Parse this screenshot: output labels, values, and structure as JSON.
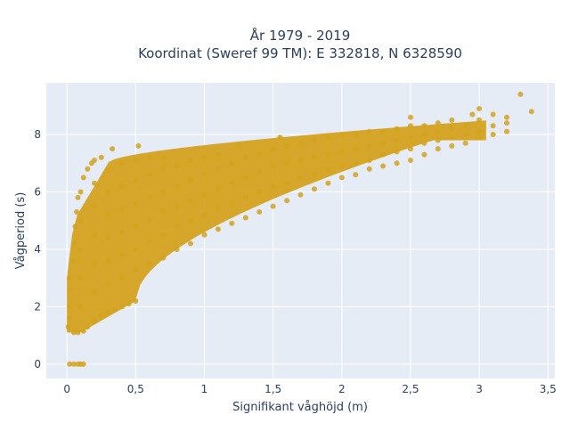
{
  "chart_data": {
    "type": "scatter",
    "title_line1": "År 1979 - 2019",
    "title_line2": "Koordinat (Sweref 99 TM): E 332818, N 6328590",
    "xlabel": "Signifikant våghöjd (m)",
    "ylabel": "Vågperiod (s)",
    "xlim": [
      -0.15,
      3.55
    ],
    "ylim": [
      -0.5,
      9.8
    ],
    "grid": true,
    "point_color": "#D4A21E",
    "background_color": "#E5ECF6",
    "x_ticks": [
      {
        "value": 0,
        "label": "0"
      },
      {
        "value": 0.5,
        "label": "0,5"
      },
      {
        "value": 1,
        "label": "1"
      },
      {
        "value": 1.5,
        "label": "1,5"
      },
      {
        "value": 2,
        "label": "2"
      },
      {
        "value": 2.5,
        "label": "2,5"
      },
      {
        "value": 3,
        "label": "3"
      },
      {
        "value": 3.5,
        "label": "3,5"
      }
    ],
    "y_ticks": [
      {
        "value": 0,
        "label": "0"
      },
      {
        "value": 2,
        "label": "2"
      },
      {
        "value": 4,
        "label": "4"
      },
      {
        "value": 6,
        "label": "6"
      },
      {
        "value": 8,
        "label": "8"
      }
    ],
    "points": [
      [
        0.02,
        0
      ],
      [
        0.05,
        0
      ],
      [
        0.08,
        0
      ],
      [
        0.1,
        0
      ],
      [
        0.12,
        0
      ],
      [
        0.01,
        1.3
      ],
      [
        0.02,
        1.6
      ],
      [
        0.02,
        2.0
      ],
      [
        0.03,
        2.6
      ],
      [
        0.02,
        3.0
      ],
      [
        0.04,
        3.6
      ],
      [
        0.05,
        4.2
      ],
      [
        0.06,
        4.8
      ],
      [
        0.07,
        5.3
      ],
      [
        0.08,
        5.8
      ],
      [
        0.05,
        1.1
      ],
      [
        0.08,
        1.1
      ],
      [
        0.12,
        1.15
      ],
      [
        0.15,
        1.3
      ],
      [
        0.2,
        1.5
      ],
      [
        0.25,
        1.7
      ],
      [
        0.3,
        1.8
      ],
      [
        0.35,
        1.9
      ],
      [
        0.4,
        2.0
      ],
      [
        0.45,
        2.1
      ],
      [
        0.5,
        2.2
      ],
      [
        0.1,
        2.0
      ],
      [
        0.1,
        3.0
      ],
      [
        0.1,
        4.0
      ],
      [
        0.1,
        5.0
      ],
      [
        0.1,
        6.0
      ],
      [
        0.12,
        6.5
      ],
      [
        0.15,
        6.8
      ],
      [
        0.18,
        7.0
      ],
      [
        0.2,
        7.1
      ],
      [
        0.25,
        7.2
      ],
      [
        0.2,
        2.5
      ],
      [
        0.2,
        3.5
      ],
      [
        0.2,
        4.5
      ],
      [
        0.2,
        5.5
      ],
      [
        0.2,
        6.3
      ],
      [
        0.3,
        2.8
      ],
      [
        0.3,
        3.6
      ],
      [
        0.3,
        4.4
      ],
      [
        0.3,
        5.2
      ],
      [
        0.3,
        6.0
      ],
      [
        0.3,
        6.8
      ],
      [
        0.33,
        7.5
      ],
      [
        0.4,
        3.0
      ],
      [
        0.4,
        3.8
      ],
      [
        0.4,
        4.6
      ],
      [
        0.4,
        5.4
      ],
      [
        0.4,
        6.2
      ],
      [
        0.4,
        7.0
      ],
      [
        0.5,
        3.3
      ],
      [
        0.5,
        4.0
      ],
      [
        0.5,
        4.8
      ],
      [
        0.5,
        5.6
      ],
      [
        0.5,
        6.4
      ],
      [
        0.5,
        7.1
      ],
      [
        0.52,
        7.6
      ],
      [
        0.6,
        3.5
      ],
      [
        0.6,
        4.3
      ],
      [
        0.6,
        5.0
      ],
      [
        0.6,
        5.8
      ],
      [
        0.6,
        6.6
      ],
      [
        0.6,
        7.2
      ],
      [
        0.7,
        3.7
      ],
      [
        0.7,
        4.5
      ],
      [
        0.7,
        5.3
      ],
      [
        0.7,
        6.0
      ],
      [
        0.7,
        6.8
      ],
      [
        0.7,
        7.2
      ],
      [
        0.8,
        4.0
      ],
      [
        0.8,
        4.8
      ],
      [
        0.8,
        5.5
      ],
      [
        0.8,
        6.2
      ],
      [
        0.8,
        6.9
      ],
      [
        0.9,
        4.2
      ],
      [
        0.9,
        5.0
      ],
      [
        0.9,
        5.7
      ],
      [
        0.9,
        6.4
      ],
      [
        0.9,
        7.1
      ],
      [
        1.0,
        4.5
      ],
      [
        1.0,
        5.2
      ],
      [
        1.0,
        5.9
      ],
      [
        1.0,
        6.6
      ],
      [
        1.0,
        7.2
      ],
      [
        1.1,
        4.7
      ],
      [
        1.1,
        5.4
      ],
      [
        1.1,
        6.1
      ],
      [
        1.1,
        6.8
      ],
      [
        1.1,
        7.3
      ],
      [
        1.2,
        4.9
      ],
      [
        1.2,
        5.6
      ],
      [
        1.2,
        6.3
      ],
      [
        1.2,
        7.0
      ],
      [
        1.25,
        7.6
      ],
      [
        1.3,
        5.1
      ],
      [
        1.3,
        5.8
      ],
      [
        1.3,
        6.5
      ],
      [
        1.3,
        7.2
      ],
      [
        1.4,
        5.3
      ],
      [
        1.4,
        6.0
      ],
      [
        1.4,
        6.7
      ],
      [
        1.4,
        7.3
      ],
      [
        1.5,
        5.5
      ],
      [
        1.5,
        6.2
      ],
      [
        1.5,
        6.9
      ],
      [
        1.5,
        7.5
      ],
      [
        1.55,
        7.9
      ],
      [
        1.6,
        5.7
      ],
      [
        1.6,
        6.3
      ],
      [
        1.6,
        7.0
      ],
      [
        1.6,
        7.6
      ],
      [
        1.7,
        5.9
      ],
      [
        1.7,
        6.5
      ],
      [
        1.7,
        7.1
      ],
      [
        1.7,
        7.7
      ],
      [
        1.8,
        6.1
      ],
      [
        1.8,
        6.6
      ],
      [
        1.8,
        7.2
      ],
      [
        1.8,
        7.8
      ],
      [
        1.9,
        6.3
      ],
      [
        1.9,
        6.8
      ],
      [
        1.9,
        7.3
      ],
      [
        1.9,
        7.9
      ],
      [
        2.0,
        6.5
      ],
      [
        2.0,
        6.9
      ],
      [
        2.0,
        7.4
      ],
      [
        2.0,
        8.0
      ],
      [
        2.1,
        6.6
      ],
      [
        2.1,
        7.0
      ],
      [
        2.1,
        7.5
      ],
      [
        2.1,
        8.0
      ],
      [
        2.2,
        6.8
      ],
      [
        2.2,
        7.1
      ],
      [
        2.2,
        7.6
      ],
      [
        2.2,
        8.1
      ],
      [
        2.3,
        6.9
      ],
      [
        2.3,
        7.3
      ],
      [
        2.3,
        7.7
      ],
      [
        2.3,
        8.1
      ],
      [
        2.4,
        7.0
      ],
      [
        2.4,
        7.4
      ],
      [
        2.4,
        7.8
      ],
      [
        2.4,
        8.2
      ],
      [
        2.5,
        7.1
      ],
      [
        2.5,
        7.5
      ],
      [
        2.5,
        7.9
      ],
      [
        2.5,
        8.3
      ],
      [
        2.5,
        8.6
      ],
      [
        2.6,
        7.3
      ],
      [
        2.6,
        7.7
      ],
      [
        2.6,
        8.0
      ],
      [
        2.6,
        8.3
      ],
      [
        2.7,
        7.5
      ],
      [
        2.7,
        7.8
      ],
      [
        2.7,
        8.1
      ],
      [
        2.7,
        8.4
      ],
      [
        2.8,
        7.6
      ],
      [
        2.8,
        7.9
      ],
      [
        2.8,
        8.2
      ],
      [
        2.8,
        8.5
      ],
      [
        2.9,
        7.7
      ],
      [
        2.9,
        8.0
      ],
      [
        2.9,
        8.3
      ],
      [
        2.95,
        8.7
      ],
      [
        3.0,
        7.9
      ],
      [
        3.0,
        8.1
      ],
      [
        3.0,
        8.5
      ],
      [
        3.0,
        8.9
      ],
      [
        3.1,
        8.0
      ],
      [
        3.1,
        8.3
      ],
      [
        3.1,
        8.7
      ],
      [
        3.2,
        8.1
      ],
      [
        3.2,
        8.4
      ],
      [
        3.2,
        8.6
      ],
      [
        3.3,
        9.4
      ],
      [
        3.38,
        8.8
      ]
    ]
  }
}
